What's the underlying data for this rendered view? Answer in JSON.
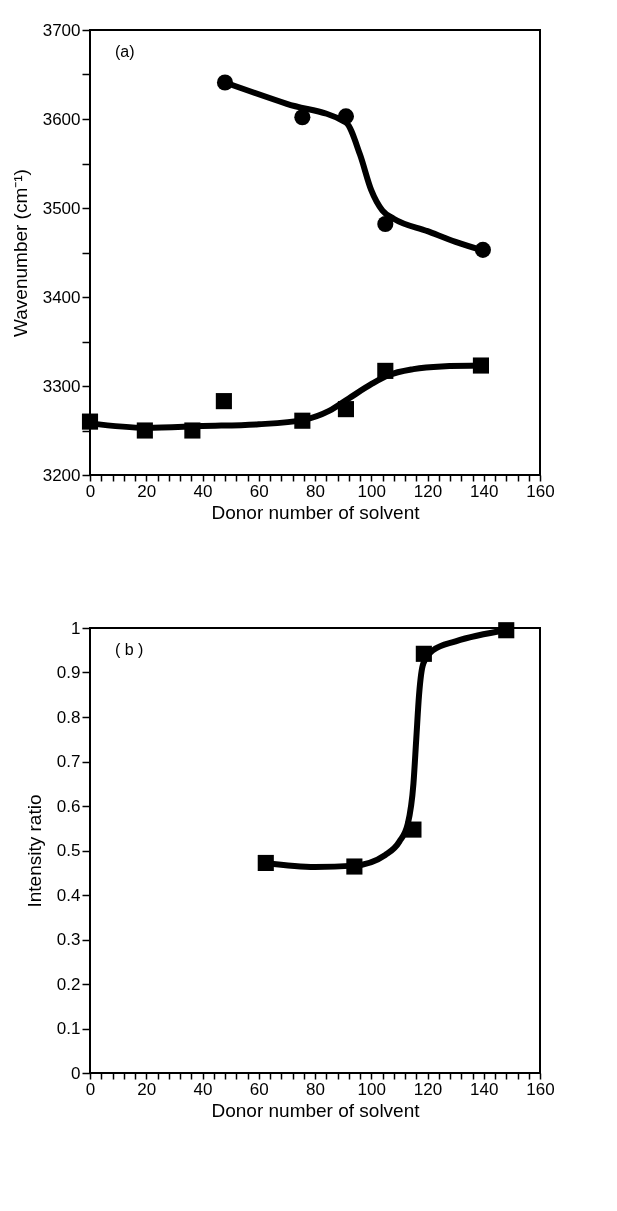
{
  "chart_data": [
    {
      "type": "scatter",
      "annotations": [
        "(a)"
      ],
      "xlabel": "Donor number of solvent",
      "ylabel": "Wavenumber   (cm⁻¹)",
      "xlim": [
        0,
        160
      ],
      "ylim": [
        3200,
        3700
      ],
      "grid": false,
      "xticks": [
        0,
        {
          "value": 4,
          "label": null
        },
        {
          "value": 8,
          "label": null
        },
        {
          "value": 12,
          "label": null
        },
        {
          "value": 16,
          "label": null
        },
        20,
        {
          "value": 24,
          "label": null
        },
        {
          "value": 28,
          "label": null
        },
        {
          "value": 32,
          "label": null
        },
        {
          "value": 36,
          "label": null
        },
        40,
        {
          "value": 44,
          "label": null
        },
        {
          "value": 48,
          "label": null
        },
        {
          "value": 52,
          "label": null
        },
        {
          "value": 56,
          "label": null
        },
        60,
        {
          "value": 64,
          "label": null
        },
        {
          "value": 68,
          "label": null
        },
        {
          "value": 72,
          "label": null
        },
        {
          "value": 76,
          "label": null
        },
        80,
        {
          "value": 84,
          "label": null
        },
        {
          "value": 88,
          "label": null
        },
        {
          "value": 92,
          "label": null
        },
        {
          "value": 96,
          "label": null
        },
        100,
        {
          "value": 104,
          "label": null
        },
        {
          "value": 108,
          "label": null
        },
        {
          "value": 112,
          "label": null
        },
        {
          "value": 116,
          "label": null
        },
        120,
        {
          "value": 124,
          "label": null
        },
        {
          "value": 128,
          "label": null
        },
        {
          "value": 132,
          "label": null
        },
        {
          "value": 136,
          "label": null
        },
        140,
        {
          "value": 144,
          "label": null
        },
        {
          "value": 148,
          "label": null
        },
        {
          "value": 152,
          "label": null
        },
        {
          "value": 156,
          "label": null
        },
        160
      ],
      "yticks": [
        3200,
        {
          "value": 3250,
          "label": null
        },
        3300,
        {
          "value": 3350,
          "label": null
        },
        3400,
        {
          "value": 3450,
          "label": null
        },
        3500,
        {
          "value": 3550,
          "label": null
        },
        3600,
        {
          "value": 3650,
          "label": null
        },
        3700
      ],
      "series": [
        {
          "type": "line",
          "color": "#000000",
          "line_style": "solid",
          "x": [
            48,
            70,
            91,
            96,
            100,
            104,
            108,
            120,
            130,
            140
          ],
          "values": [
            3641,
            3617,
            3596,
            3560,
            3520,
            3497,
            3488,
            3474,
            3462,
            3452
          ]
        },
        {
          "type": "line",
          "color": "#000000",
          "line_style": "solid",
          "x": [
            0,
            20,
            40,
            60,
            76,
            85,
            92,
            100,
            106,
            115,
            125,
            140
          ],
          "values": [
            3258,
            3253,
            3255,
            3257,
            3262,
            3272,
            3286,
            3302,
            3312,
            3319,
            3322,
            3323
          ]
        },
        {
          "type": "scatter",
          "color": "#000000",
          "marker": "circle",
          "x": [
            48,
            75.5,
            91,
            105,
            139.7
          ],
          "values": [
            3641,
            3602,
            3603,
            3482,
            3453
          ]
        },
        {
          "type": "scatter",
          "color": "#000000",
          "marker": "square",
          "x": [
            0,
            19.5,
            36.4,
            47.6,
            75.5,
            91,
            105,
            139
          ],
          "values": [
            3260,
            3250,
            3250,
            3283,
            3261,
            3274,
            3317,
            3323
          ]
        }
      ]
    },
    {
      "type": "scatter",
      "annotations": [
        "( b )"
      ],
      "xlabel": "Donor number of solvent",
      "ylabel": "Intensity ratio",
      "xlim": [
        0,
        160
      ],
      "ylim": [
        0,
        1
      ],
      "grid": false,
      "xticks": [
        0,
        {
          "value": 4,
          "label": null
        },
        {
          "value": 8,
          "label": null
        },
        {
          "value": 12,
          "label": null
        },
        {
          "value": 16,
          "label": null
        },
        20,
        {
          "value": 24,
          "label": null
        },
        {
          "value": 28,
          "label": null
        },
        {
          "value": 32,
          "label": null
        },
        {
          "value": 36,
          "label": null
        },
        40,
        {
          "value": 44,
          "label": null
        },
        {
          "value": 48,
          "label": null
        },
        {
          "value": 52,
          "label": null
        },
        {
          "value": 56,
          "label": null
        },
        60,
        {
          "value": 64,
          "label": null
        },
        {
          "value": 68,
          "label": null
        },
        {
          "value": 72,
          "label": null
        },
        {
          "value": 76,
          "label": null
        },
        80,
        {
          "value": 84,
          "label": null
        },
        {
          "value": 88,
          "label": null
        },
        {
          "value": 92,
          "label": null
        },
        {
          "value": 96,
          "label": null
        },
        100,
        {
          "value": 104,
          "label": null
        },
        {
          "value": 108,
          "label": null
        },
        {
          "value": 112,
          "label": null
        },
        {
          "value": 116,
          "label": null
        },
        120,
        {
          "value": 124,
          "label": null
        },
        {
          "value": 128,
          "label": null
        },
        {
          "value": 132,
          "label": null
        },
        {
          "value": 136,
          "label": null
        },
        140,
        {
          "value": 144,
          "label": null
        },
        {
          "value": 148,
          "label": null
        },
        {
          "value": 152,
          "label": null
        },
        {
          "value": 156,
          "label": null
        },
        160
      ],
      "yticks": [
        0,
        0.1,
        0.2,
        0.3,
        0.4,
        0.5,
        0.6,
        0.7,
        0.8,
        0.9,
        1
      ],
      "series": [
        {
          "type": "line",
          "color": "#000000",
          "line_style": "solid",
          "x": [
            62.5,
            80,
            94,
            105,
            110,
            113,
            115,
            116,
            117,
            118.5,
            122,
            130,
            148
          ],
          "values": [
            0.472,
            0.463,
            0.466,
            0.49,
            0.52,
            0.56,
            0.65,
            0.75,
            0.85,
            0.92,
            0.95,
            0.97,
            0.995
          ]
        },
        {
          "type": "scatter",
          "color": "#000000",
          "marker": "square",
          "x": [
            62.5,
            94,
            115,
            118.7,
            148
          ],
          "values": [
            0.472,
            0.464,
            0.547,
            0.942,
            0.995
          ]
        }
      ]
    }
  ]
}
